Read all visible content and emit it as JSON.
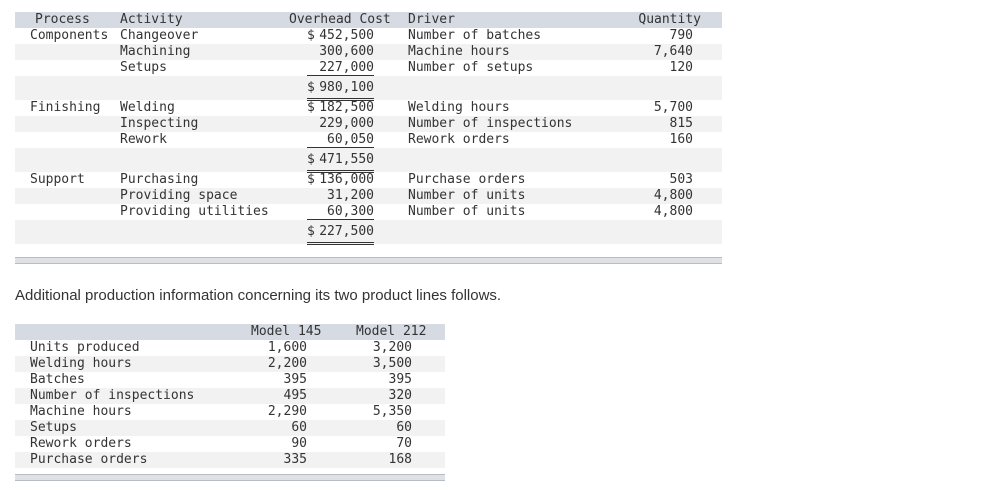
{
  "table1": {
    "headers": {
      "process": "Process",
      "activity": "Activity",
      "overhead_cost": "Overhead Cost",
      "driver": "Driver",
      "quantity": "Quantity"
    },
    "groups": [
      {
        "process": "Components",
        "rows": [
          {
            "activity": "Changeover",
            "dollar": "$",
            "cost": "452,500",
            "driver": "Number of batches",
            "quantity": "790"
          },
          {
            "activity": "Machining",
            "dollar": "",
            "cost": "300,600",
            "driver": "Machine hours",
            "quantity": "7,640"
          },
          {
            "activity": "Setups",
            "dollar": "",
            "cost": "227,000",
            "driver": "Number of setups",
            "quantity": "120"
          }
        ],
        "total": {
          "dollar": "$",
          "cost": "980,100"
        }
      },
      {
        "process": "Finishing",
        "rows": [
          {
            "activity": "Welding",
            "dollar": "$",
            "cost": "182,500",
            "driver": "Welding hours",
            "quantity": "5,700"
          },
          {
            "activity": "Inspecting",
            "dollar": "",
            "cost": "229,000",
            "driver": "Number of inspections",
            "quantity": "815"
          },
          {
            "activity": "Rework",
            "dollar": "",
            "cost": "60,050",
            "driver": "Rework orders",
            "quantity": "160"
          }
        ],
        "total": {
          "dollar": "$",
          "cost": "471,550"
        }
      },
      {
        "process": "Support",
        "rows": [
          {
            "activity": "Purchasing",
            "dollar": "$",
            "cost": "136,000",
            "driver": "Purchase orders",
            "quantity": "503"
          },
          {
            "activity": "Providing space",
            "dollar": "",
            "cost": "31,200",
            "driver": "Number of units",
            "quantity": "4,800"
          },
          {
            "activity": "Providing utilities",
            "dollar": "",
            "cost": "60,300",
            "driver": "Number of units",
            "quantity": "4,800"
          }
        ],
        "total": {
          "dollar": "$",
          "cost": "227,500"
        }
      }
    ]
  },
  "paragraph": "Additional production information concerning its two product lines follows.",
  "table2": {
    "headers": {
      "model145": "Model 145",
      "model212": "Model 212"
    },
    "rows": [
      {
        "label": "Units produced",
        "m145": "1,600",
        "m212": "3,200"
      },
      {
        "label": "Welding hours",
        "m145": "2,200",
        "m212": "3,500"
      },
      {
        "label": "Batches",
        "m145": "395",
        "m212": "395"
      },
      {
        "label": "Number of inspections",
        "m145": "495",
        "m212": "320"
      },
      {
        "label": "Machine hours",
        "m145": "2,290",
        "m212": "5,350"
      },
      {
        "label": "Setups",
        "m145": "60",
        "m212": "60"
      },
      {
        "label": "Rework orders",
        "m145": "90",
        "m212": "70"
      },
      {
        "label": "Purchase orders",
        "m145": "335",
        "m212": "168"
      }
    ]
  }
}
